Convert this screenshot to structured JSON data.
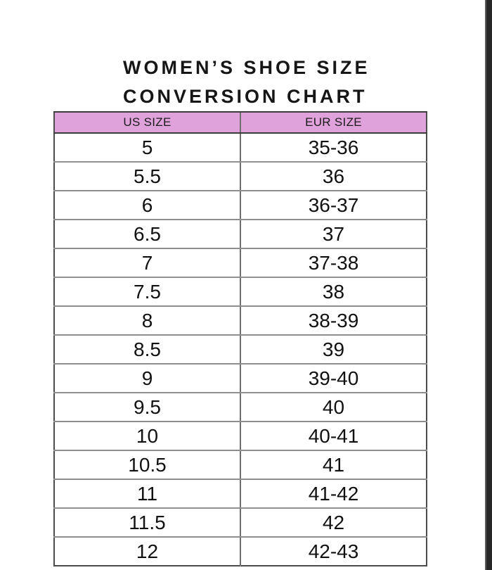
{
  "page": {
    "background_color": "#ffffff",
    "right_edge_bar_color": "#282828"
  },
  "title": {
    "line1": "WOMEN’S SHOE SIZE",
    "line2": "CONVERSION CHART"
  },
  "table": {
    "header_bg_color": "#e0a2db",
    "headers": [
      "US SIZE",
      "EUR SIZE"
    ],
    "rows": [
      [
        "5",
        "35-36"
      ],
      [
        "5.5",
        "36"
      ],
      [
        "6",
        "36-37"
      ],
      [
        "6.5",
        "37"
      ],
      [
        "7",
        "37-38"
      ],
      [
        "7.5",
        "38"
      ],
      [
        "8",
        "38-39"
      ],
      [
        "8.5",
        "39"
      ],
      [
        "9",
        "39-40"
      ],
      [
        "9.5",
        "40"
      ],
      [
        "10",
        "40-41"
      ],
      [
        "10.5",
        "41"
      ],
      [
        "11",
        "41-42"
      ],
      [
        "11.5",
        "42"
      ],
      [
        "12",
        "42-43"
      ]
    ]
  },
  "chart_data": {
    "type": "table",
    "title": "WOMEN’S SHOE SIZE CONVERSION CHART",
    "columns": [
      "US SIZE",
      "EUR SIZE"
    ],
    "rows": [
      [
        "5",
        "35-36"
      ],
      [
        "5.5",
        "36"
      ],
      [
        "6",
        "36-37"
      ],
      [
        "6.5",
        "37"
      ],
      [
        "7",
        "37-38"
      ],
      [
        "7.5",
        "38"
      ],
      [
        "8",
        "38-39"
      ],
      [
        "8.5",
        "39"
      ],
      [
        "9",
        "39-40"
      ],
      [
        "9.5",
        "40"
      ],
      [
        "10",
        "40-41"
      ],
      [
        "10.5",
        "41"
      ],
      [
        "11",
        "41-42"
      ],
      [
        "11.5",
        "42"
      ],
      [
        "12",
        "42-43"
      ]
    ]
  }
}
